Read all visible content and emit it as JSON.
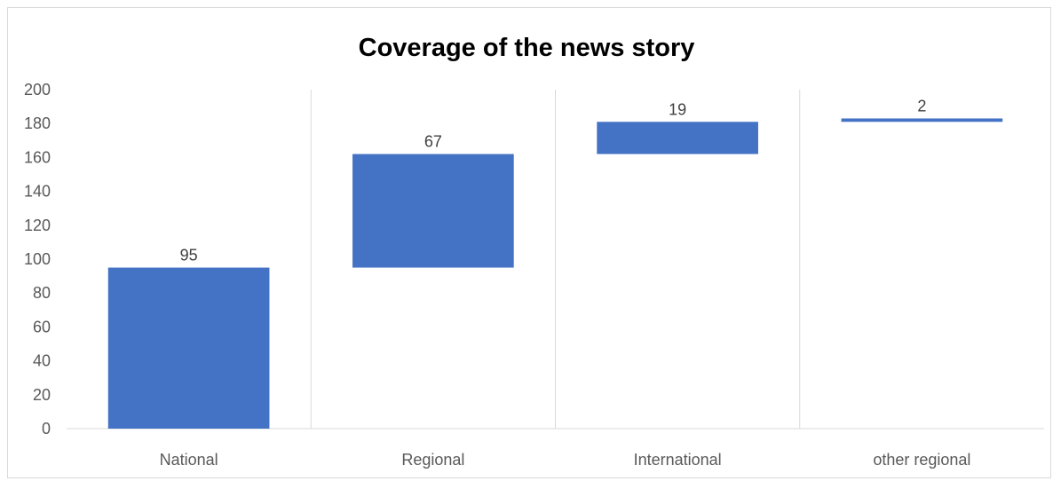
{
  "chart_data": {
    "type": "bar",
    "subtype": "waterfall",
    "title": "Coverage of the news story",
    "xlabel": "",
    "ylabel": "",
    "categories": [
      "National",
      "Regional",
      "International",
      "other regional"
    ],
    "values": [
      95,
      67,
      19,
      2
    ],
    "ylim": [
      0,
      200
    ],
    "yticks": [
      0,
      20,
      40,
      60,
      80,
      100,
      120,
      140,
      160,
      180,
      200
    ],
    "grid": "vertical category separators",
    "legend": "none",
    "bar_color": "#4472c4"
  }
}
